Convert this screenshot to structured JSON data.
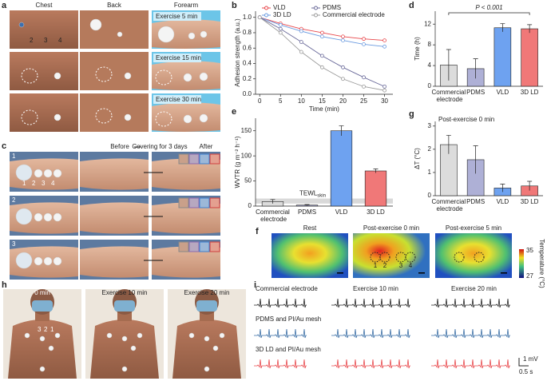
{
  "panels": [
    "a",
    "b",
    "c",
    "d",
    "e",
    "f",
    "g",
    "h",
    "i"
  ],
  "a": {
    "columns": [
      "Chest",
      "Back",
      "Forearm"
    ],
    "labels": [
      "Exercise 5 min",
      "Exercise 15 min",
      "Exercise 30 min"
    ],
    "markers": [
      "2",
      "3",
      "4"
    ]
  },
  "c": {
    "headers": [
      "Before",
      "Covering for 3 days",
      "After"
    ],
    "rows": [
      "1",
      "2",
      "3"
    ],
    "markers": [
      "1",
      "2",
      "3",
      "4"
    ]
  },
  "f": {
    "labels": [
      "Rest",
      "Post-exercise 0 min",
      "Post-exercise 5 min"
    ],
    "markers": [
      "1",
      "2",
      "3",
      "4"
    ],
    "colorbar": {
      "ticks": [
        "35",
        "27"
      ],
      "label": "Temperature (°C)"
    }
  },
  "h": {
    "labels": [
      "0 min",
      "Exercise 10 min",
      "Exercise 20 min"
    ],
    "markers": [
      "3",
      "2",
      "1"
    ]
  },
  "i": {
    "rows": [
      "Commercial electrode",
      "PDMS and PI/Au mesh",
      "3D LD and PI/Au mesh"
    ],
    "columns": [
      "Exercise 10 min",
      "Exercise 20 min"
    ],
    "scale": [
      "1 mV",
      "0.5 s"
    ]
  },
  "chart_data": [
    {
      "type": "line",
      "x": [
        0,
        5,
        10,
        15,
        20,
        25,
        30
      ],
      "xlim": [
        -1,
        32
      ],
      "xticks": [
        0,
        5,
        10,
        15,
        20,
        25,
        30
      ],
      "ylim": [
        0,
        1.08
      ],
      "yticks": [
        {
          "value": 0,
          "label": "0.0"
        },
        0.2,
        0.4,
        0.6,
        0.8,
        {
          "value": 1,
          "label": "1.0"
        }
      ],
      "x_label": "Time (min)",
      "y_label": "Adhesion strength (a.u.)",
      "legend": "top",
      "series": [
        {
          "name": "VLD",
          "color": "#e8474b",
          "values": [
            1.0,
            0.92,
            0.85,
            0.8,
            0.75,
            0.72,
            0.7
          ]
        },
        {
          "name": "3D LD",
          "color": "#6b9be0",
          "values": [
            1.0,
            0.9,
            0.82,
            0.75,
            0.7,
            0.65,
            0.62
          ]
        },
        {
          "name": "PDMS",
          "color": "#6a6a9a",
          "values": [
            1.0,
            0.85,
            0.68,
            0.5,
            0.35,
            0.22,
            0.1
          ]
        },
        {
          "name": "Commercial electrode",
          "color": "#9a9a9a",
          "values": [
            1.0,
            0.8,
            0.55,
            0.35,
            0.2,
            0.1,
            0.05
          ]
        }
      ]
    },
    {
      "type": "bar",
      "categories": [
        "Commercial electrode",
        "PDMS",
        "VLD",
        "3D LD"
      ],
      "values": [
        4.1,
        3.4,
        11.3,
        11.1
      ],
      "errors": [
        3.0,
        1.9,
        0.8,
        0.8
      ],
      "colors": [
        "#dcdcdc",
        "#aeb0d6",
        "#6ea2f0",
        "#f07878"
      ],
      "ylim": [
        0,
        14.5
      ],
      "yticks": [
        0,
        4,
        8,
        12
      ],
      "y_label": "Time (h)",
      "annotation": "P < 0.001"
    },
    {
      "type": "bar",
      "categories": [
        "Commercial electrode",
        "PDMS",
        "VLD",
        "3D LD"
      ],
      "values": [
        9,
        2,
        150,
        70
      ],
      "errors": [
        4,
        1,
        10,
        4
      ],
      "colors": [
        "#dcdcdc",
        "#aeb0d6",
        "#6ea2f0",
        "#f07878"
      ],
      "ylim": [
        0,
        175
      ],
      "yticks": [
        0,
        50,
        100,
        150
      ],
      "y_label": "WVTR (g m⁻² h⁻¹)",
      "reference_band": [
        5,
        15
      ],
      "reference_label": {
        "text": "TEWL",
        "sub": "skin"
      }
    },
    {
      "type": "bar",
      "categories": [
        "Commercial electrode",
        "PDMS",
        "VLD",
        "3D LD"
      ],
      "values": [
        2.2,
        1.55,
        0.33,
        0.42
      ],
      "errors": [
        0.4,
        0.6,
        0.17,
        0.2
      ],
      "colors": [
        "#dcdcdc",
        "#aeb0d6",
        "#6ea2f0",
        "#f07878"
      ],
      "ylim": [
        0,
        3.2
      ],
      "yticks": [
        0,
        1,
        2,
        3
      ],
      "y_label": "ΔT (°C)",
      "subtitle": "Post-exercise 0 min"
    }
  ]
}
